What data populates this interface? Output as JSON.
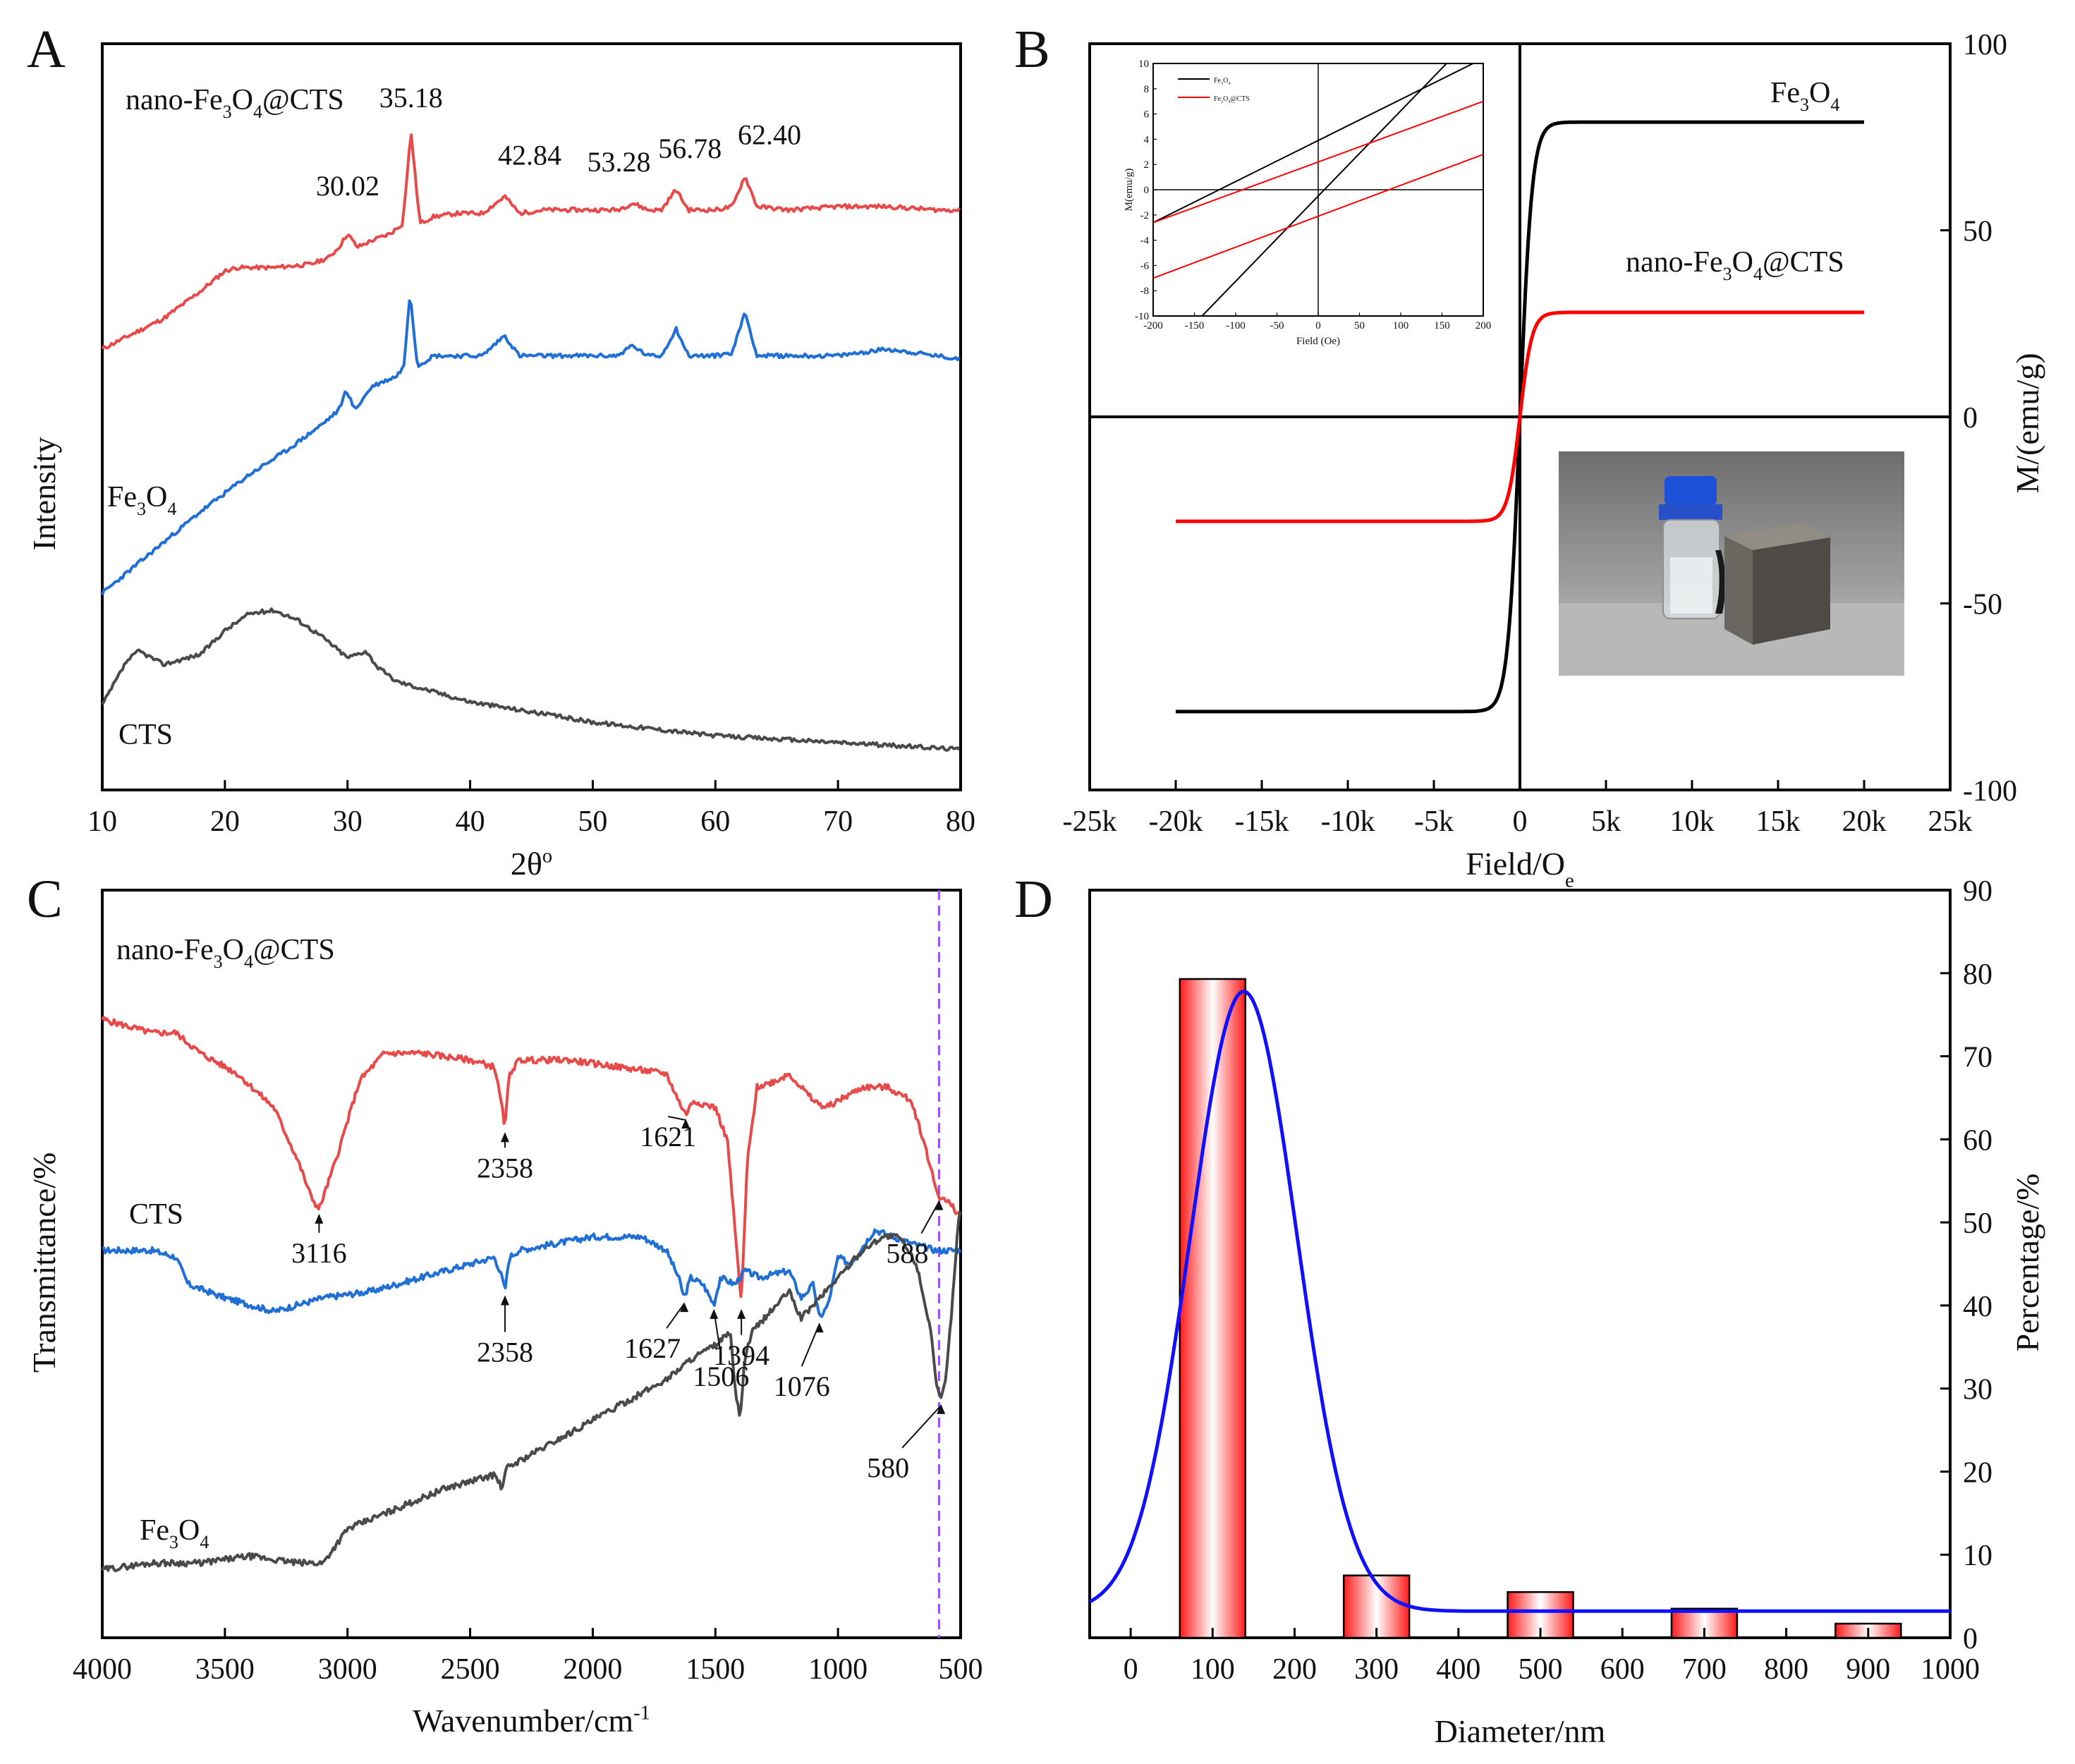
{
  "chart_data": [
    {
      "panel": "A",
      "type": "line",
      "xlabel": "2θ",
      "xlabel_sup": "o",
      "ylabel": "Intensity",
      "xlim": [
        10,
        80
      ],
      "xticks": [
        "10",
        "20",
        "30",
        "40",
        "50",
        "60",
        "70",
        "80"
      ],
      "series": [
        {
          "name": "nano-Fe3O4@CTS",
          "label_parts": [
            "nano-Fe",
            "3",
            "O",
            "4",
            "@CTS"
          ],
          "color": "#e84a4a",
          "x": [
            10,
            15,
            18,
            20,
            21,
            24,
            27,
            28.5,
            29.3,
            30.0,
            30.8,
            32,
            33.5,
            34.5,
            35.18,
            35.9,
            37,
            39,
            41,
            42.84,
            44,
            46,
            48,
            50,
            52,
            53.28,
            54.5,
            55.6,
            56.78,
            57.8,
            60,
            61.4,
            62.4,
            63.4,
            66,
            70,
            74,
            78,
            80
          ],
          "y": [
            0.0,
            0.09,
            0.17,
            0.23,
            0.24,
            0.24,
            0.25,
            0.27,
            0.3,
            0.34,
            0.3,
            0.32,
            0.34,
            0.37,
            0.64,
            0.37,
            0.39,
            0.4,
            0.4,
            0.45,
            0.4,
            0.41,
            0.41,
            0.41,
            0.41,
            0.43,
            0.41,
            0.41,
            0.47,
            0.41,
            0.41,
            0.42,
            0.51,
            0.42,
            0.41,
            0.42,
            0.42,
            0.41,
            0.41
          ]
        },
        {
          "name": "Fe3O4",
          "label_parts": [
            "Fe",
            "3",
            "O",
            "4"
          ],
          "color": "#1f6fd6",
          "x": [
            10,
            14,
            18,
            22,
            25,
            28,
            29.3,
            29.9,
            30.6,
            32,
            34,
            34.6,
            35.1,
            35.7,
            37,
            39,
            41,
            42.8,
            44,
            48,
            52,
            53.2,
            54.5,
            55.6,
            56.8,
            57.8,
            60,
            61.4,
            62.4,
            63.4,
            66,
            70,
            74,
            78,
            80
          ],
          "y": [
            -0.72,
            -0.6,
            -0.48,
            -0.37,
            -0.3,
            -0.22,
            -0.18,
            -0.12,
            -0.18,
            -0.11,
            -0.08,
            -0.05,
            0.17,
            -0.05,
            -0.02,
            -0.02,
            -0.02,
            0.04,
            -0.02,
            -0.02,
            -0.02,
            0.01,
            -0.02,
            -0.02,
            0.06,
            -0.02,
            -0.02,
            -0.01,
            0.11,
            -0.02,
            -0.02,
            -0.02,
            0.0,
            -0.02,
            -0.03
          ]
        },
        {
          "name": "CTS",
          "label_parts": [
            "CTS"
          ],
          "color": "#4a4a4a",
          "x": [
            10,
            12,
            13,
            15,
            18,
            20,
            22,
            24,
            26,
            28,
            30,
            31.5,
            32.5,
            34,
            37,
            40,
            45,
            50,
            55,
            60,
            65,
            70,
            75,
            80
          ],
          "y": [
            -1.05,
            -0.92,
            -0.89,
            -0.93,
            -0.9,
            -0.83,
            -0.78,
            -0.77,
            -0.8,
            -0.85,
            -0.91,
            -0.89,
            -0.94,
            -0.98,
            -1.01,
            -1.04,
            -1.07,
            -1.1,
            -1.12,
            -1.14,
            -1.15,
            -1.16,
            -1.17,
            -1.18
          ]
        }
      ],
      "annotations": [
        {
          "x": 30.02,
          "text": "30.02"
        },
        {
          "x": 35.18,
          "text": "35.18"
        },
        {
          "x": 42.84,
          "text": "42.84"
        },
        {
          "x": 53.28,
          "text": "53.28"
        },
        {
          "x": 56.78,
          "text": "56.78"
        },
        {
          "x": 62.4,
          "text": "62.40"
        }
      ]
    },
    {
      "panel": "B",
      "type": "line",
      "xlabel": "Field/O",
      "xlabel_sub": "e",
      "ylabel": "M/(emu/g)",
      "xlim": [
        -25000,
        25000
      ],
      "ylim": [
        -100,
        100
      ],
      "xticks": [
        {
          "v": -25000,
          "t": "-25k"
        },
        {
          "v": -20000,
          "t": "-20k"
        },
        {
          "v": -15000,
          "t": "-15k"
        },
        {
          "v": -10000,
          "t": "-10k"
        },
        {
          "v": -5000,
          "t": "-5k"
        },
        {
          "v": 0,
          "t": "0"
        },
        {
          "v": 5000,
          "t": "5k"
        },
        {
          "v": 10000,
          "t": "10k"
        },
        {
          "v": 15000,
          "t": "15k"
        },
        {
          "v": 20000,
          "t": "20k"
        },
        {
          "v": 25000,
          "t": "25k"
        }
      ],
      "yticks": [
        {
          "v": -100,
          "t": "-100"
        },
        {
          "v": -50,
          "t": "-50"
        },
        {
          "v": 0,
          "t": "0"
        },
        {
          "v": 50,
          "t": "50"
        },
        {
          "v": 100,
          "t": "100"
        }
      ],
      "series": [
        {
          "name": "Fe3O4",
          "label_parts": [
            "Fe",
            "3",
            "O",
            "4"
          ],
          "color": "#000000",
          "ms": 79,
          "h0": 700
        },
        {
          "name": "nano-Fe3O4@CTS",
          "label_parts": [
            "nano-Fe",
            "3",
            "O",
            "4",
            "@CTS"
          ],
          "color": "#ff0000",
          "ms": 28,
          "h0": 700
        }
      ],
      "inset": {
        "xlabel": "Field (Oe)",
        "ylabel": "M(emu/g)",
        "xlim": [
          -200,
          200
        ],
        "ylim": [
          -10,
          10
        ],
        "xticks": [
          "-200",
          "-150",
          "-100",
          "-50",
          "0",
          "50",
          "100",
          "150",
          "200"
        ],
        "yticks": [
          "-10",
          "-8",
          "-6",
          "-4",
          "-2",
          "0",
          "2",
          "4",
          "6",
          "8",
          "10"
        ],
        "legend": [
          {
            "label_parts": [
              "Fe",
              "3",
              "O",
              "4"
            ],
            "color": "#000000"
          },
          {
            "label_parts": [
              "Fe",
              "3",
              "O",
              "4",
              "@CTS"
            ],
            "color": "#ff0000"
          }
        ],
        "lines": [
          {
            "color": "#000000",
            "x1": -200,
            "y1": -2.6,
            "x2": 200,
            "y2": 10.4
          },
          {
            "color": "#000000",
            "x1": -200,
            "y1": -14,
            "x2": 200,
            "y2": 13
          },
          {
            "color": "#ff0000",
            "x1": -200,
            "y1": -2.6,
            "x2": 200,
            "y2": 7.0
          },
          {
            "color": "#ff0000",
            "x1": -200,
            "y1": -7.0,
            "x2": 200,
            "y2": 2.8
          }
        ]
      }
    },
    {
      "panel": "C",
      "type": "line",
      "xlabel": "Wavenumber/cm",
      "xlabel_sup": "-1",
      "ylabel": "Transmittance/%",
      "xlim": [
        4000,
        500
      ],
      "xticks": [
        "4000",
        "3500",
        "3000",
        "2500",
        "2000",
        "1500",
        "1000",
        "500"
      ],
      "vline": 588,
      "series": [
        {
          "name": "nano-Fe3O4@CTS",
          "label_parts": [
            "nano-Fe",
            "3",
            "O",
            "4",
            "@CTS"
          ],
          "color": "#e84a4a",
          "x": [
            4000,
            3800,
            3700,
            3600,
            3450,
            3300,
            3200,
            3150,
            3116,
            3050,
            2950,
            2850,
            2700,
            2500,
            2400,
            2370,
            2358,
            2340,
            2300,
            2100,
            1900,
            1700,
            1650,
            1621,
            1590,
            1500,
            1450,
            1420,
            1394,
            1370,
            1330,
            1250,
            1200,
            1100,
            1050,
            1000,
            900,
            800,
            700,
            650,
            600,
            588,
            550,
            500
          ],
          "y": [
            76,
            74,
            74,
            71,
            68,
            63,
            55,
            50,
            48,
            55,
            67,
            71,
            71,
            70,
            69,
            63,
            60,
            68,
            70,
            70,
            69,
            68,
            64,
            62,
            64,
            63,
            58,
            45,
            34,
            55,
            66,
            67,
            68,
            64,
            63,
            64,
            66,
            66,
            64,
            58,
            51,
            50,
            49,
            47
          ]
        },
        {
          "name": "CTS",
          "label_parts": [
            "CTS"
          ],
          "color": "#1f6fd6",
          "x": [
            4000,
            3800,
            3700,
            3650,
            3500,
            3300,
            3100,
            2900,
            2700,
            2500,
            2400,
            2370,
            2358,
            2340,
            2300,
            2000,
            1800,
            1700,
            1650,
            1627,
            1600,
            1550,
            1506,
            1480,
            1420,
            1380,
            1320,
            1200,
            1150,
            1100,
            1076,
            1040,
            1000,
            950,
            850,
            700,
            600,
            500
          ],
          "y": [
            42,
            42,
            41,
            37,
            35,
            33,
            35,
            36,
            38,
            40,
            41,
            38,
            36,
            41,
            42,
            44,
            44,
            42,
            38,
            35,
            38,
            37,
            34,
            38,
            37,
            39,
            38,
            39,
            35,
            37,
            32,
            34,
            41,
            40,
            45,
            43,
            42,
            42
          ]
        },
        {
          "name": "Fe3O4",
          "label_parts": [
            "Fe",
            "3",
            "O",
            "4"
          ],
          "color": "#4a4a4a",
          "x": [
            4000,
            3800,
            3600,
            3400,
            3200,
            3100,
            3000,
            2800,
            2600,
            2400,
            2370,
            2350,
            2300,
            2100,
            1900,
            1700,
            1600,
            1500,
            1440,
            1420,
            1400,
            1380,
            1350,
            1250,
            1200,
            1150,
            1000,
            900,
            820,
            750,
            680,
            620,
            600,
            580,
            560,
            530,
            510,
            500
          ],
          "y": [
            -5,
            -4,
            -4,
            -3,
            -4,
            -4,
            1,
            4,
            7,
            9,
            7,
            10,
            11,
            15,
            19,
            23,
            26,
            28,
            30,
            22,
            17,
            26,
            30,
            34,
            36,
            32,
            38,
            42,
            44,
            44,
            40,
            30,
            22,
            20,
            23,
            36,
            46,
            48
          ]
        }
      ],
      "annotations": [
        {
          "x": 3116,
          "text": "3116",
          "series": 0
        },
        {
          "x": 2358,
          "text": "2358",
          "series": 0
        },
        {
          "x": 1621,
          "text": "1621",
          "series": 0
        },
        {
          "x": 1394,
          "text": "1394",
          "series": 0
        },
        {
          "x": 588,
          "text": "588",
          "series": 0
        },
        {
          "x": 2358,
          "text": "2358",
          "series": 1
        },
        {
          "x": 1627,
          "text": "1627",
          "series": 1
        },
        {
          "x": 1506,
          "text": "1506",
          "series": 1
        },
        {
          "x": 1076,
          "text": "1076",
          "series": 1
        },
        {
          "x": 580,
          "text": "580",
          "series": 2
        }
      ]
    },
    {
      "panel": "D",
      "type": "bar",
      "xlabel": "Diameter/nm",
      "ylabel": "Percentage/%",
      "xlim": [
        -50,
        1000
      ],
      "ylim": [
        0,
        90
      ],
      "xticks": [
        "0",
        "100",
        "200",
        "300",
        "400",
        "500",
        "600",
        "700",
        "800",
        "900",
        "1000"
      ],
      "yticks": [
        "0",
        "10",
        "20",
        "30",
        "40",
        "50",
        "60",
        "70",
        "80",
        "90"
      ],
      "bars": [
        {
          "x": 100,
          "value": 79.3
        },
        {
          "x": 300,
          "value": 7.5
        },
        {
          "x": 500,
          "value": 5.5
        },
        {
          "x": 700,
          "value": 3.5
        },
        {
          "x": 900,
          "value": 1.7
        }
      ],
      "fit": {
        "type": "gaussian",
        "color": "#1010ff",
        "y0": 3.2,
        "amplitude": 74.6,
        "center": 138,
        "sigma": 65
      }
    }
  ]
}
